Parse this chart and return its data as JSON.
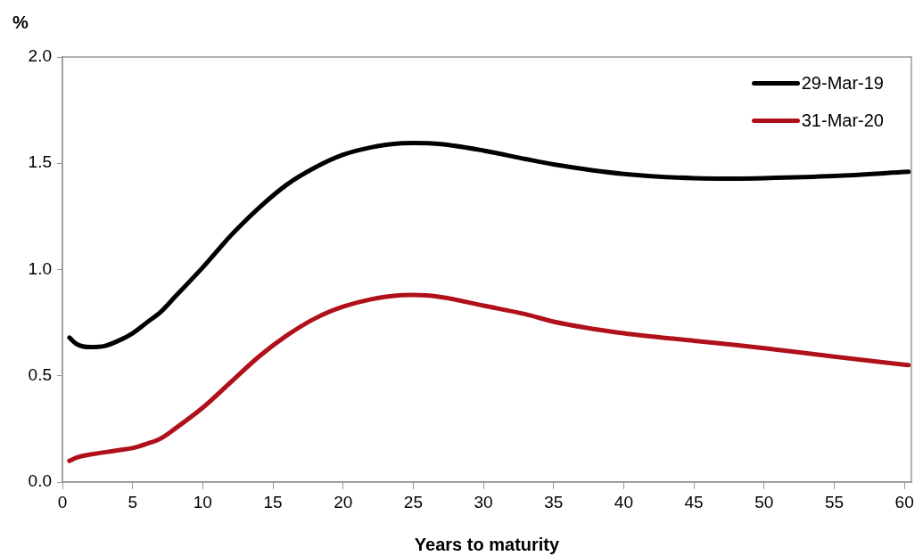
{
  "chart_data": {
    "type": "line",
    "xlabel": "Years to maturity",
    "ylabel": "%",
    "xlim": [
      0,
      60.5
    ],
    "xticks": [
      0,
      5,
      10,
      15,
      20,
      25,
      30,
      35,
      40,
      45,
      50,
      55,
      60
    ],
    "ylim": [
      0,
      2
    ],
    "yticks": [
      {
        "value": 0,
        "label": "0.0"
      },
      {
        "value": 0.5,
        "label": "0.5"
      },
      {
        "value": 1,
        "label": "1.0"
      },
      {
        "value": 1.5,
        "label": "1.5"
      },
      {
        "value": 2,
        "label": "2.0"
      }
    ],
    "grid": false,
    "legend": "top right",
    "marker": "none",
    "line_style": "solid",
    "x": [
      0.5,
      1,
      2,
      3,
      4,
      5,
      6,
      7,
      8,
      10,
      12,
      14,
      16,
      18,
      20,
      22,
      24,
      25,
      27,
      30,
      33,
      35,
      40,
      45,
      48,
      50,
      55,
      60.3
    ],
    "series": [
      {
        "name": "29-Mar-19",
        "color": "#000000",
        "values": [
          0.68,
          0.65,
          0.635,
          0.64,
          0.665,
          0.7,
          0.75,
          0.8,
          0.87,
          1.01,
          1.16,
          1.29,
          1.4,
          1.48,
          1.54,
          1.575,
          1.593,
          1.595,
          1.59,
          1.56,
          1.52,
          1.495,
          1.45,
          1.43,
          1.428,
          1.43,
          1.44,
          1.46
        ]
      },
      {
        "name": "31-Mar-20",
        "color": "#b0101a",
        "values": [
          0.1,
          0.115,
          0.13,
          0.14,
          0.15,
          0.16,
          0.18,
          0.205,
          0.25,
          0.35,
          0.47,
          0.59,
          0.69,
          0.77,
          0.825,
          0.86,
          0.878,
          0.88,
          0.87,
          0.83,
          0.79,
          0.755,
          0.7,
          0.665,
          0.645,
          0.63,
          0.59,
          0.55
        ]
      }
    ]
  }
}
